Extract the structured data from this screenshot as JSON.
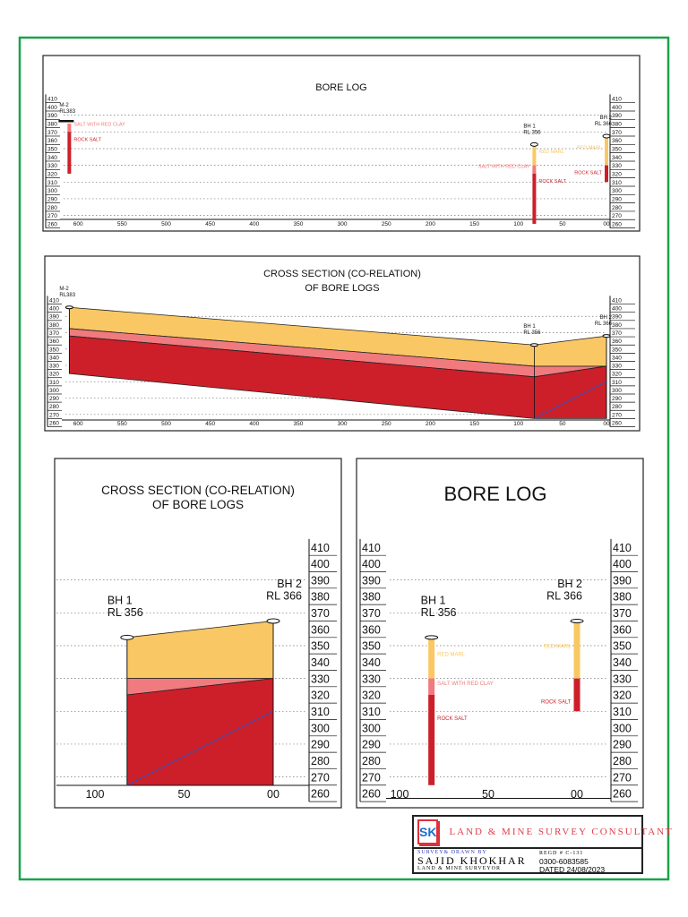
{
  "colors": {
    "frame": "#1aa34a",
    "red_marl": "#f9c864",
    "salt_with_red_clay": "#f07a7e",
    "rock_salt": "#cc1f2a",
    "blue_line": "#3050c0"
  },
  "legend_labels": {
    "red_marl": "RED MARL",
    "salt_with_red_clay": "SALT WITH RED CLAY",
    "rock_salt": "ROCK SALT"
  },
  "elevation_ticks": [
    "410",
    "400",
    "390",
    "380",
    "370",
    "360",
    "350",
    "340",
    "330",
    "320",
    "310",
    "300",
    "290",
    "280",
    "270",
    "260"
  ],
  "panels": [
    {
      "id": "p1",
      "title_lines": [
        "BORE LOG"
      ],
      "chainage_ticks": [
        "600",
        "550",
        "500",
        "450",
        "400",
        "350",
        "300",
        "250",
        "200",
        "150",
        "100",
        "50",
        "00"
      ],
      "boreholes": [
        {
          "name": "M-2",
          "rl_label": "RL383",
          "rl": 383,
          "chainage": 610,
          "layers": [
            {
              "type": "salt_with_red_clay",
              "top": 380,
              "bottom": 370
            },
            {
              "type": "rock_salt",
              "top": 370,
              "bottom": 320
            }
          ]
        },
        {
          "name": "BH 1",
          "rl_label": "RL 356",
          "rl": 356,
          "chainage": 82,
          "layers": [
            {
              "type": "red_marl",
              "top": 355,
              "bottom": 330
            },
            {
              "type": "salt_with_red_clay",
              "top": 330,
              "bottom": 320
            },
            {
              "type": "rock_salt",
              "top": 320,
              "bottom": 260
            }
          ]
        },
        {
          "name": "BH 2",
          "rl_label": "RL 366",
          "rl": 366,
          "chainage": 0,
          "layers": [
            {
              "type": "red_marl",
              "top": 365,
              "bottom": 330
            },
            {
              "type": "rock_salt",
              "top": 330,
              "bottom": 310
            }
          ]
        }
      ]
    },
    {
      "id": "p2",
      "title_lines": [
        "CROSS SECTION (CO-RELATION)",
        "OF BORE  LOGS"
      ],
      "chainage_ticks": [
        "600",
        "550",
        "500",
        "450",
        "400",
        "350",
        "300",
        "250",
        "200",
        "150",
        "100",
        "50",
        "00"
      ],
      "boreholes": [
        {
          "name": "M-2",
          "rl_label": "RL383",
          "chainage": 610
        },
        {
          "name": "BH 1",
          "rl_label": "RL 356",
          "chainage": 82
        },
        {
          "name": "BH 2",
          "rl_label": "RL 366",
          "chainage": 0
        }
      ],
      "section": {
        "chainages": [
          610,
          82,
          0
        ],
        "red_marl": [
          [
            401,
            375
          ],
          [
            355,
            329
          ],
          [
            366,
            329
          ]
        ],
        "salt_with_red_clay": [
          [
            375,
            366
          ],
          [
            329,
            316
          ],
          [
            329,
            329
          ]
        ],
        "rock_salt": [
          [
            366,
            320
          ],
          [
            316,
            265
          ],
          [
            329,
            265
          ]
        ],
        "blue_line": [
          [
            82,
            265
          ],
          [
            0,
            310
          ]
        ]
      }
    },
    {
      "id": "p3",
      "title_lines": [
        "CROSS SECTION (CO-RELATION)",
        "OF BORE  LOGS"
      ],
      "chainage_ticks": [
        "100",
        "50",
        "00"
      ],
      "boreholes": [
        {
          "name": "BH 1",
          "rl_label": "RL 356",
          "chainage": 82
        },
        {
          "name": "BH 2",
          "rl_label": "RL 366",
          "chainage": 0
        }
      ],
      "section": {
        "chainages": [
          82,
          0
        ],
        "red_marl": [
          [
            355,
            330
          ],
          [
            365,
            330
          ]
        ],
        "salt_with_red_clay": [
          [
            330,
            320
          ],
          [
            330,
            330
          ]
        ],
        "rock_salt": [
          [
            320,
            265
          ],
          [
            330,
            265
          ]
        ],
        "blue_line": [
          [
            82,
            265
          ],
          [
            0,
            310
          ]
        ]
      }
    },
    {
      "id": "p4",
      "title_lines": [
        "BORE LOG"
      ],
      "chainage_ticks": [
        "100",
        "50",
        "00"
      ],
      "boreholes": [
        {
          "name": "BH 1",
          "rl_label": "RL 356",
          "rl": 356,
          "chainage": 82,
          "layers": [
            {
              "type": "red_marl",
              "top": 355,
              "bottom": 330
            },
            {
              "type": "salt_with_red_clay",
              "top": 330,
              "bottom": 320
            },
            {
              "type": "rock_salt",
              "top": 320,
              "bottom": 265
            }
          ]
        },
        {
          "name": "BH 2",
          "rl_label": "RL 366",
          "rl": 366,
          "chainage": 0,
          "layers": [
            {
              "type": "red_marl",
              "top": 365,
              "bottom": 330
            },
            {
              "type": "rock_salt",
              "top": 330,
              "bottom": 310
            }
          ]
        }
      ]
    }
  ],
  "title_block": {
    "logo": "SK",
    "company": "LAND & MINE   SURVEY CONSULTANT",
    "surveyed_by": "SURVEY& DRAWN BY",
    "name": "SAJID  KHOKHAR",
    "role": "LAND & MINE SURVEYOR",
    "regd": "REGD # C-131",
    "phone": "0300-6083585",
    "dated": "DATED 24/08/2023"
  }
}
